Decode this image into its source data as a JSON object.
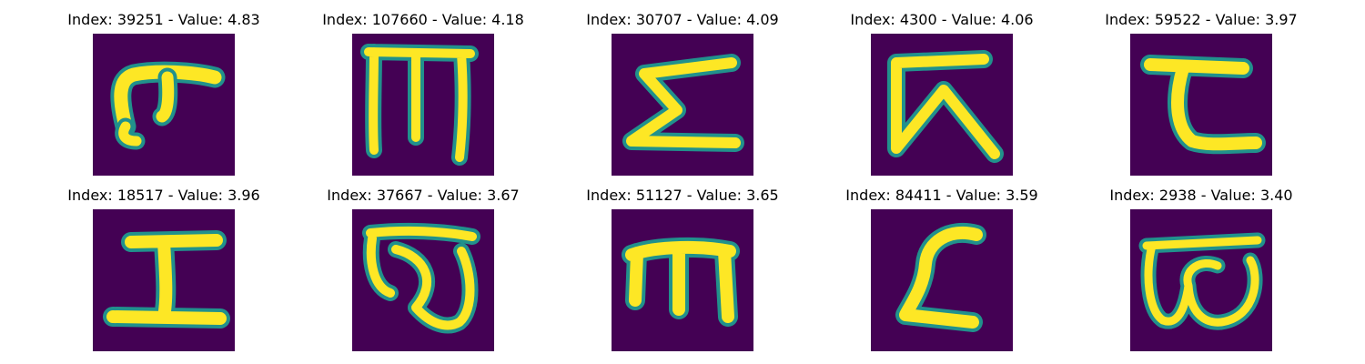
{
  "palette": {
    "background": "#440154",
    "edge": "#21918c",
    "ink": "#fde725"
  },
  "grid": {
    "rows": 2,
    "columns": 5
  },
  "panels": [
    {
      "title": "Index: 39251 - Value: 4.83",
      "glyph": "hook-character"
    },
    {
      "title": "Index: 107660 - Value: 4.18",
      "glyph": "m-like-character"
    },
    {
      "title": "Index: 30707 - Value: 4.09",
      "glyph": "sigma-like-character"
    },
    {
      "title": "Index: 4300 - Value: 4.06",
      "glyph": "angled-lambda-character"
    },
    {
      "title": "Index: 59522 - Value: 3.97",
      "glyph": "c-like-character"
    },
    {
      "title": "Index: 18517 - Value: 3.96",
      "glyph": "i-beam-character"
    },
    {
      "title": "Index: 37667 - Value: 3.67",
      "glyph": "loop-character"
    },
    {
      "title": "Index: 51127 - Value: 3.65",
      "glyph": "m-like-character"
    },
    {
      "title": "Index: 84411 - Value: 3.59",
      "glyph": "z-like-character"
    },
    {
      "title": "Index: 2938 - Value: 3.40",
      "glyph": "w-like-character"
    }
  ]
}
